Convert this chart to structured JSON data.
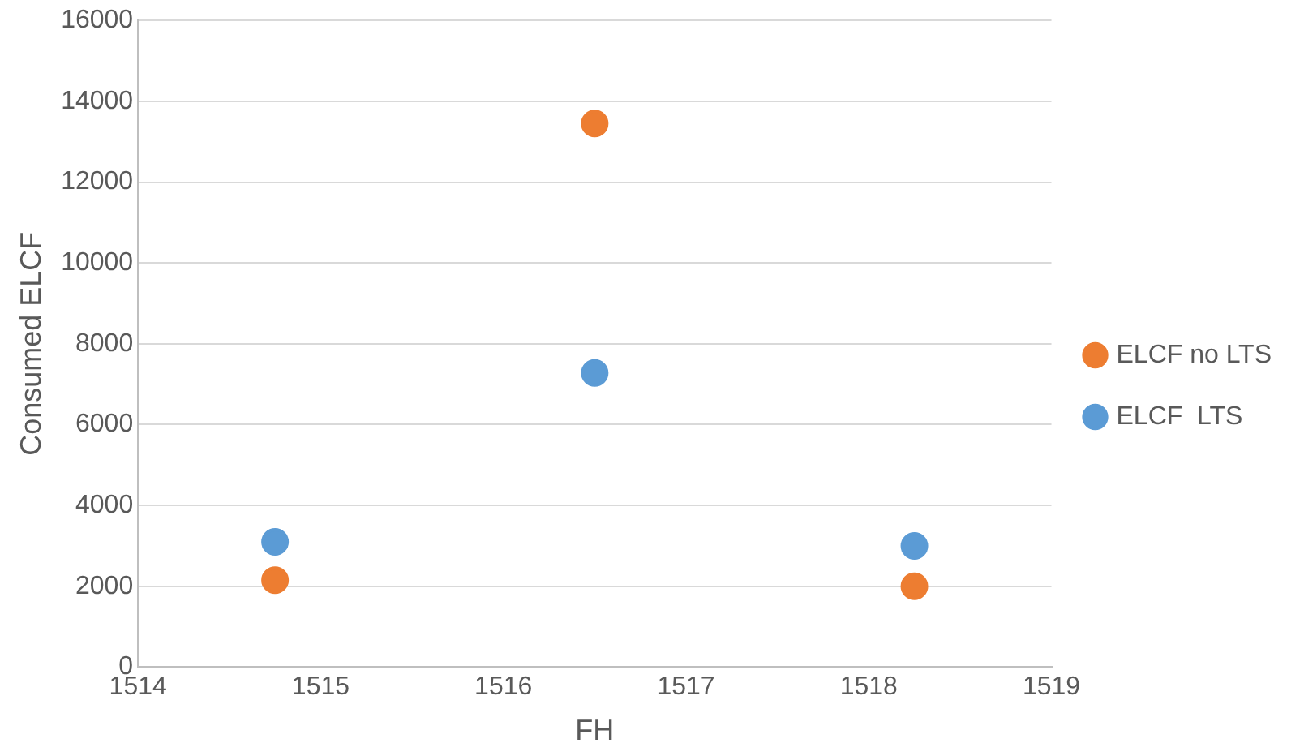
{
  "chart_data": {
    "type": "scatter",
    "xlabel": "FH",
    "ylabel": "Consumed ELCF",
    "x": [
      1514.75,
      1516.5,
      1518.25
    ],
    "series": [
      {
        "name": "ELCF no LTS",
        "color": "#ed7d31",
        "values": [
          2150,
          13450,
          2000
        ]
      },
      {
        "name": "ELCF  LTS",
        "color": "#5b9bd5",
        "values": [
          3100,
          7280,
          3000
        ]
      }
    ],
    "xlim": [
      1514,
      1519
    ],
    "xticks": [
      1514,
      1515,
      1516,
      1517,
      1518,
      1519
    ],
    "ylim": [
      0,
      16000
    ],
    "yticks": [
      0,
      2000,
      4000,
      6000,
      8000,
      10000,
      12000,
      14000,
      16000
    ],
    "grid": "y",
    "legend": "right",
    "marker": "circle"
  }
}
